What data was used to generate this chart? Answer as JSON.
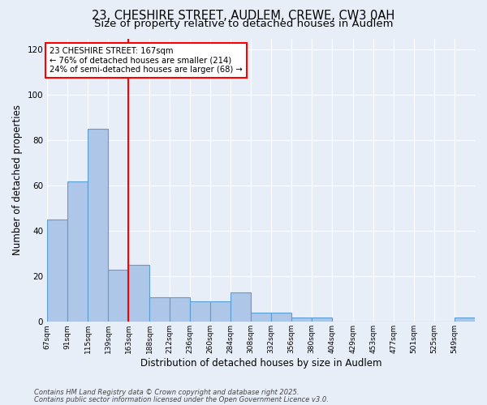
{
  "title_line1": "23, CHESHIRE STREET, AUDLEM, CREWE, CW3 0AH",
  "title_line2": "Size of property relative to detached houses in Audlem",
  "xlabel": "Distribution of detached houses by size in Audlem",
  "ylabel": "Number of detached properties",
  "bin_labels": [
    "67sqm",
    "91sqm",
    "115sqm",
    "139sqm",
    "163sqm",
    "188sqm",
    "212sqm",
    "236sqm",
    "260sqm",
    "284sqm",
    "308sqm",
    "332sqm",
    "356sqm",
    "380sqm",
    "404sqm",
    "429sqm",
    "453sqm",
    "477sqm",
    "501sqm",
    "525sqm",
    "549sqm"
  ],
  "bin_edges": [
    67,
    91,
    115,
    139,
    163,
    188,
    212,
    236,
    260,
    284,
    308,
    332,
    356,
    380,
    404,
    429,
    453,
    477,
    501,
    525,
    549
  ],
  "bar_heights": [
    45,
    62,
    85,
    23,
    25,
    11,
    11,
    9,
    9,
    13,
    4,
    4,
    2,
    2,
    0,
    0,
    0,
    0,
    0,
    0,
    2
  ],
  "bar_color": "#aec6e8",
  "bar_edge_color": "#5a9fd4",
  "bg_color": "#e8eef8",
  "grid_color": "white",
  "red_line_x": 163,
  "annotation_text": "23 CHESHIRE STREET: 167sqm\n← 76% of detached houses are smaller (214)\n24% of semi-detached houses are larger (68) →",
  "ylim": [
    0,
    125
  ],
  "yticks": [
    0,
    20,
    40,
    60,
    80,
    100,
    120
  ],
  "footer_line1": "Contains HM Land Registry data © Crown copyright and database right 2025.",
  "footer_line2": "Contains public sector information licensed under the Open Government Licence v3.0.",
  "title_fontsize": 10.5,
  "subtitle_fontsize": 9.5
}
